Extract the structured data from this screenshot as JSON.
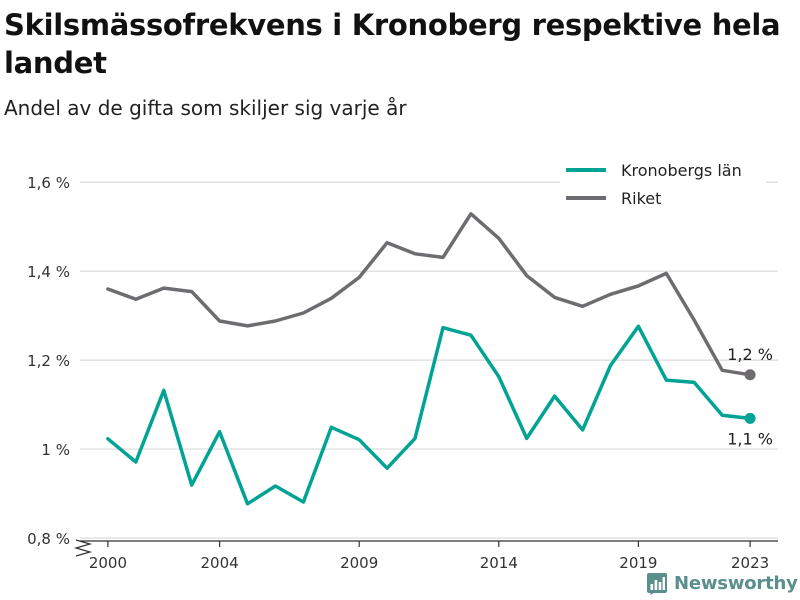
{
  "title": "Skilsmässofrekvens i Kronoberg respektive hela landet",
  "subtitle": "Andel av de gifta som skiljer sig varje år",
  "brand": "Newsworthy",
  "chart_data": {
    "type": "line",
    "x": [
      2000,
      2001,
      2002,
      2003,
      2004,
      2005,
      2006,
      2007,
      2008,
      2009,
      2010,
      2011,
      2012,
      2013,
      2014,
      2015,
      2016,
      2017,
      2018,
      2019,
      2020,
      2021,
      2022,
      2023
    ],
    "x_ticks": [
      2000,
      2004,
      2009,
      2014,
      2019,
      2023
    ],
    "x_tick_labels": [
      "2000",
      "2004",
      "2009",
      "2014",
      "2019",
      "2023"
    ],
    "xlim": [
      1999,
      2024
    ],
    "ylim": [
      0.8,
      1.65
    ],
    "y_ticks": [
      0.8,
      1.0,
      1.2,
      1.4,
      1.6
    ],
    "y_tick_labels": [
      "0,8 %",
      "1 %",
      "1,2 %",
      "1,4 %",
      "1,6 %"
    ],
    "grid": "horizontal",
    "legend_position": "top-right",
    "series": [
      {
        "name": "Kronobergs län",
        "color": "#00a394",
        "values": [
          1.023,
          0.971,
          1.132,
          0.919,
          1.039,
          0.877,
          0.917,
          0.881,
          1.049,
          1.021,
          0.957,
          1.024,
          1.273,
          1.256,
          1.163,
          1.024,
          1.119,
          1.043,
          1.188,
          1.276,
          1.155,
          1.15,
          1.076,
          1.069
        ],
        "end_label": "1,1 %"
      },
      {
        "name": "Riket",
        "color": "#6e6c70",
        "values": [
          1.36,
          1.337,
          1.362,
          1.354,
          1.288,
          1.277,
          1.288,
          1.306,
          1.339,
          1.386,
          1.464,
          1.439,
          1.431,
          1.529,
          1.474,
          1.39,
          1.341,
          1.321,
          1.348,
          1.367,
          1.395,
          1.29,
          1.177,
          1.167
        ],
        "end_label": "1,2 %"
      }
    ]
  }
}
